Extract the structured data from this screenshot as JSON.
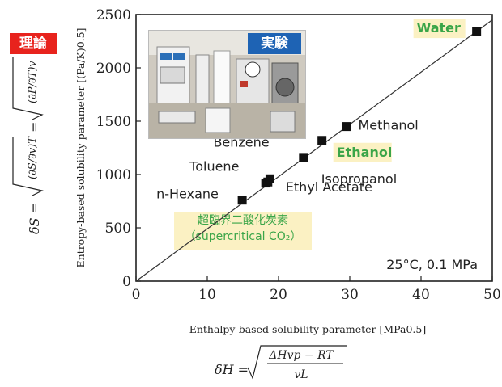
{
  "badges": {
    "theory": "理論",
    "experiment": "実験"
  },
  "supercritical": {
    "jp": "超臨界二酸化炭素",
    "en": "（supercritical CO₂）"
  },
  "condition": "25°C, 0.1 MPa",
  "formula_x": {
    "lhs": "δH =",
    "num": "ΔHvp − RT",
    "den": "vL"
  },
  "formula_y": {
    "lhs": "δS =",
    "t1": "(∂S/∂v)T",
    "eq": "=",
    "t2": "(∂P/∂T)v"
  },
  "colors": {
    "highlight": "#fbf1c3",
    "green": "#3aa548",
    "red": "#e8231d",
    "blue": "#1e63b4"
  },
  "chart_data": {
    "type": "scatter",
    "xlabel": "Enthalpy-based solubility parameter [MPa0.5]",
    "ylabel": "Entropy-based solubility parameter [(Pa/K)0.5]",
    "xlim": [
      0,
      50
    ],
    "ylim": [
      0,
      2500
    ],
    "xticks": [
      0,
      10,
      20,
      30,
      40,
      50
    ],
    "yticks": [
      0,
      500,
      1000,
      1500,
      2000,
      2500
    ],
    "line": {
      "x": [
        0,
        50
      ],
      "y": [
        0,
        2450
      ]
    },
    "points": [
      {
        "name": "n-Hexane",
        "x": 14.9,
        "y": 760
      },
      {
        "name": "Toluene",
        "x": 18.2,
        "y": 920
      },
      {
        "name": "Ethyl Acetate",
        "x": 18.5,
        "y": 930
      },
      {
        "name": "Benzene",
        "x": 18.8,
        "y": 960
      },
      {
        "name": "Isopropanol",
        "x": 23.5,
        "y": 1160
      },
      {
        "name": "Ethanol",
        "x": 26.1,
        "y": 1320
      },
      {
        "name": "Methanol",
        "x": 29.6,
        "y": 1450
      },
      {
        "name": "Water",
        "x": 47.8,
        "y": 2340
      }
    ]
  }
}
